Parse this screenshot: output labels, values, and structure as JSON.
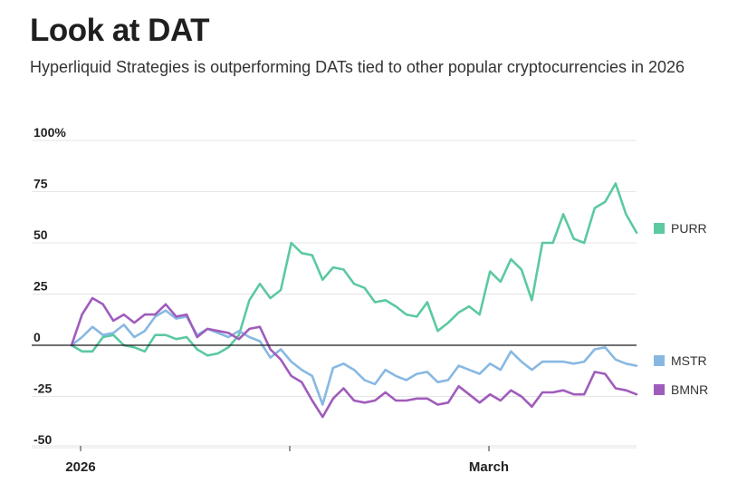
{
  "title": "Look at DAT",
  "subtitle": "Hyperliquid Strategies is outperforming DATs tied to other popular cryptocurrencies in 2026",
  "chart_data": {
    "type": "line",
    "title": "Look at DAT",
    "subtitle": "Hyperliquid Strategies is outperforming DATs tied to other popular cryptocurrencies in 2026",
    "xlabel": "",
    "ylabel": "",
    "x_ticks": [
      "2026",
      "March"
    ],
    "y_ticks": [
      "100%",
      "75",
      "50",
      "25",
      "0",
      "-25",
      "-50"
    ],
    "ylim": [
      -50,
      100
    ],
    "grid": true,
    "legend": "right, beside line ends",
    "series": [
      {
        "name": "PURR",
        "color": "#5cc9a0",
        "values": [
          0,
          -3,
          -3,
          4,
          5,
          0,
          -1,
          -3,
          5,
          5,
          3,
          4,
          -2,
          -5,
          -4,
          -1,
          5,
          22,
          30,
          23,
          27,
          50,
          45,
          44,
          32,
          38,
          37,
          30,
          28,
          21,
          22,
          19,
          15,
          14,
          21,
          7,
          11,
          16,
          19,
          15,
          36,
          31,
          42,
          37,
          22,
          50,
          50,
          64,
          52,
          50,
          67,
          70,
          79,
          64,
          55
        ]
      },
      {
        "name": "MSTR",
        "color": "#88b8e2",
        "values": [
          0,
          4,
          9,
          5,
          6,
          10,
          4,
          7,
          14,
          17,
          13,
          14,
          5,
          8,
          6,
          4,
          7,
          4,
          2,
          -6,
          -2,
          -8,
          -12,
          -15,
          -29,
          -11,
          -9,
          -12,
          -17,
          -19,
          -12,
          -15,
          -17,
          -14,
          -13,
          -18,
          -17,
          -10,
          -12,
          -14,
          -9,
          -12,
          -3,
          -8,
          -12,
          -8,
          -8,
          -8,
          -9,
          -8,
          -2,
          -1,
          -7,
          -9,
          -10
        ]
      },
      {
        "name": "BMNR",
        "color": "#a05cbb",
        "values": [
          0,
          15,
          23,
          20,
          12,
          15,
          11,
          15,
          15,
          20,
          14,
          15,
          4,
          8,
          7,
          6,
          3,
          8,
          9,
          -2,
          -7,
          -15,
          -18,
          -27,
          -35,
          -26,
          -21,
          -27,
          -28,
          -27,
          -23,
          -27,
          -27,
          -26,
          -26,
          -29,
          -28,
          -20,
          -24,
          -28,
          -24,
          -27,
          -22,
          -25,
          -30,
          -23,
          -23,
          -22,
          -24,
          -24,
          -13,
          -14,
          -21,
          -22,
          -24
        ]
      }
    ]
  },
  "legend": {
    "purr": "PURR",
    "mstr": "MSTR",
    "bmnr": "BMNR"
  },
  "colors": {
    "purr": "#5cc9a0",
    "mstr": "#88b8e2",
    "bmnr": "#a05cbb",
    "grid": "#e6e6e6",
    "zero": "#1a1a1a"
  }
}
